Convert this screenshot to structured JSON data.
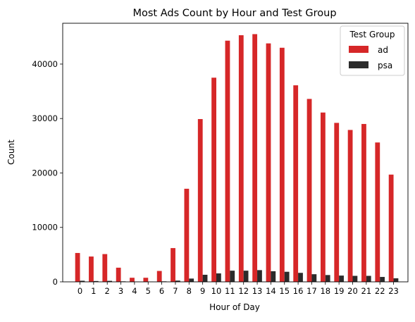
{
  "chart_data": {
    "type": "bar",
    "title": "Most Ads Count by Hour and Test Group",
    "xlabel": "Hour of Day",
    "ylabel": "Count",
    "categories": [
      "0",
      "1",
      "2",
      "3",
      "4",
      "5",
      "6",
      "7",
      "8",
      "9",
      "10",
      "11",
      "12",
      "13",
      "14",
      "15",
      "16",
      "17",
      "18",
      "19",
      "20",
      "21",
      "22",
      "23"
    ],
    "ylim": [
      0,
      47500
    ],
    "yticks": [
      0,
      10000,
      20000,
      30000,
      40000
    ],
    "grid": false,
    "legend": {
      "title": "Test Group",
      "placement": "top-right"
    },
    "series": [
      {
        "name": "ad",
        "color": "#d62728",
        "values": [
          5300,
          4650,
          5100,
          2600,
          750,
          750,
          2000,
          6200,
          17100,
          29900,
          37500,
          44300,
          45300,
          45500,
          43800,
          43000,
          36100,
          33600,
          31100,
          29200,
          27900,
          29000,
          25600,
          19700
        ]
      },
      {
        "name": "psa",
        "color": "#2b2b2b",
        "values": [
          200,
          150,
          180,
          90,
          30,
          25,
          90,
          230,
          600,
          1300,
          1550,
          2050,
          2050,
          2150,
          1950,
          1850,
          1650,
          1400,
          1250,
          1150,
          1100,
          1100,
          900,
          650
        ]
      }
    ]
  }
}
